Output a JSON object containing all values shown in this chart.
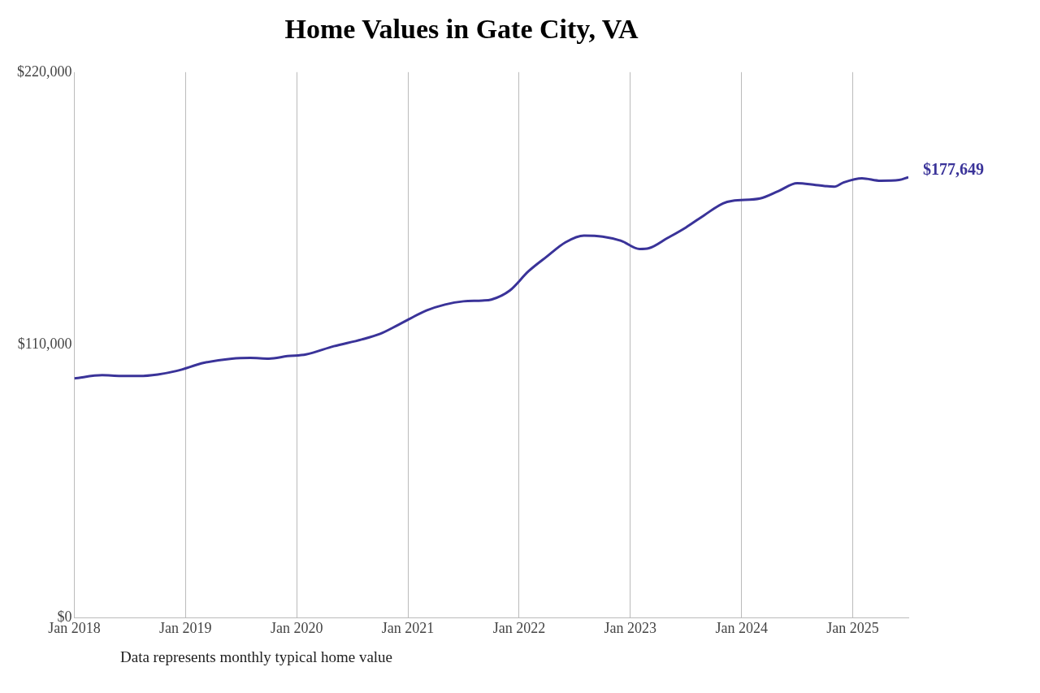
{
  "chart_data": {
    "type": "line",
    "title": "Home Values in Gate City, VA",
    "x": [
      "2018-01",
      "2018-04",
      "2018-06",
      "2018-08",
      "2018-10",
      "2018-12",
      "2019-03",
      "2019-06",
      "2019-08",
      "2019-10",
      "2019-12",
      "2020-02",
      "2020-05",
      "2020-08",
      "2020-10",
      "2020-12",
      "2021-03",
      "2021-05",
      "2021-07",
      "2021-09",
      "2021-10",
      "2021-12",
      "2022-02",
      "2022-04",
      "2022-06",
      "2022-08",
      "2022-10",
      "2022-12",
      "2023-02",
      "2023-03",
      "2023-05",
      "2023-07",
      "2023-09",
      "2023-11",
      "2023-12",
      "2024-03",
      "2024-05",
      "2024-07",
      "2024-09",
      "2024-11",
      "2024-12",
      "2025-02",
      "2025-04",
      "2025-06",
      "2025-07"
    ],
    "series": [
      {
        "color": "#3a3399",
        "values": [
          96500,
          97800,
          97500,
          97500,
          98100,
          99500,
          102800,
          104500,
          104800,
          104500,
          105500,
          106200,
          109500,
          112200,
          114500,
          118200,
          123900,
          126300,
          127600,
          127900,
          128300,
          132000,
          139700,
          145700,
          151400,
          154100,
          153700,
          152000,
          148700,
          149000,
          153100,
          157400,
          162400,
          167100,
          168100,
          169100,
          172100,
          175200,
          174500,
          173800,
          175500,
          177200,
          176200,
          176500,
          177649
        ]
      }
    ],
    "xticks": [
      {
        "value": "2018-01",
        "label": "Jan 2018"
      },
      {
        "value": "2019-01",
        "label": "Jan 2019"
      },
      {
        "value": "2020-01",
        "label": "Jan 2020"
      },
      {
        "value": "2021-01",
        "label": "Jan 2021"
      },
      {
        "value": "2022-01",
        "label": "Jan 2022"
      },
      {
        "value": "2023-01",
        "label": "Jan 2023"
      },
      {
        "value": "2024-01",
        "label": "Jan 2024"
      },
      {
        "value": "2025-01",
        "label": "Jan 2025"
      }
    ],
    "xlim": [
      "2018-01",
      "2025-07"
    ],
    "ylim": [
      0,
      220000
    ],
    "yticks": [
      {
        "value": 0,
        "label": "$0"
      },
      {
        "value": 110000,
        "label": "$110,000"
      },
      {
        "value": 220000,
        "label": "$220,000"
      }
    ],
    "grid": "x",
    "legend": false,
    "marker": "none",
    "line_style": "solid",
    "annotations": [
      {
        "text": "$177,649",
        "x": "2025-07",
        "y": 177649
      },
      "Data represents monthly typical home value"
    ]
  }
}
